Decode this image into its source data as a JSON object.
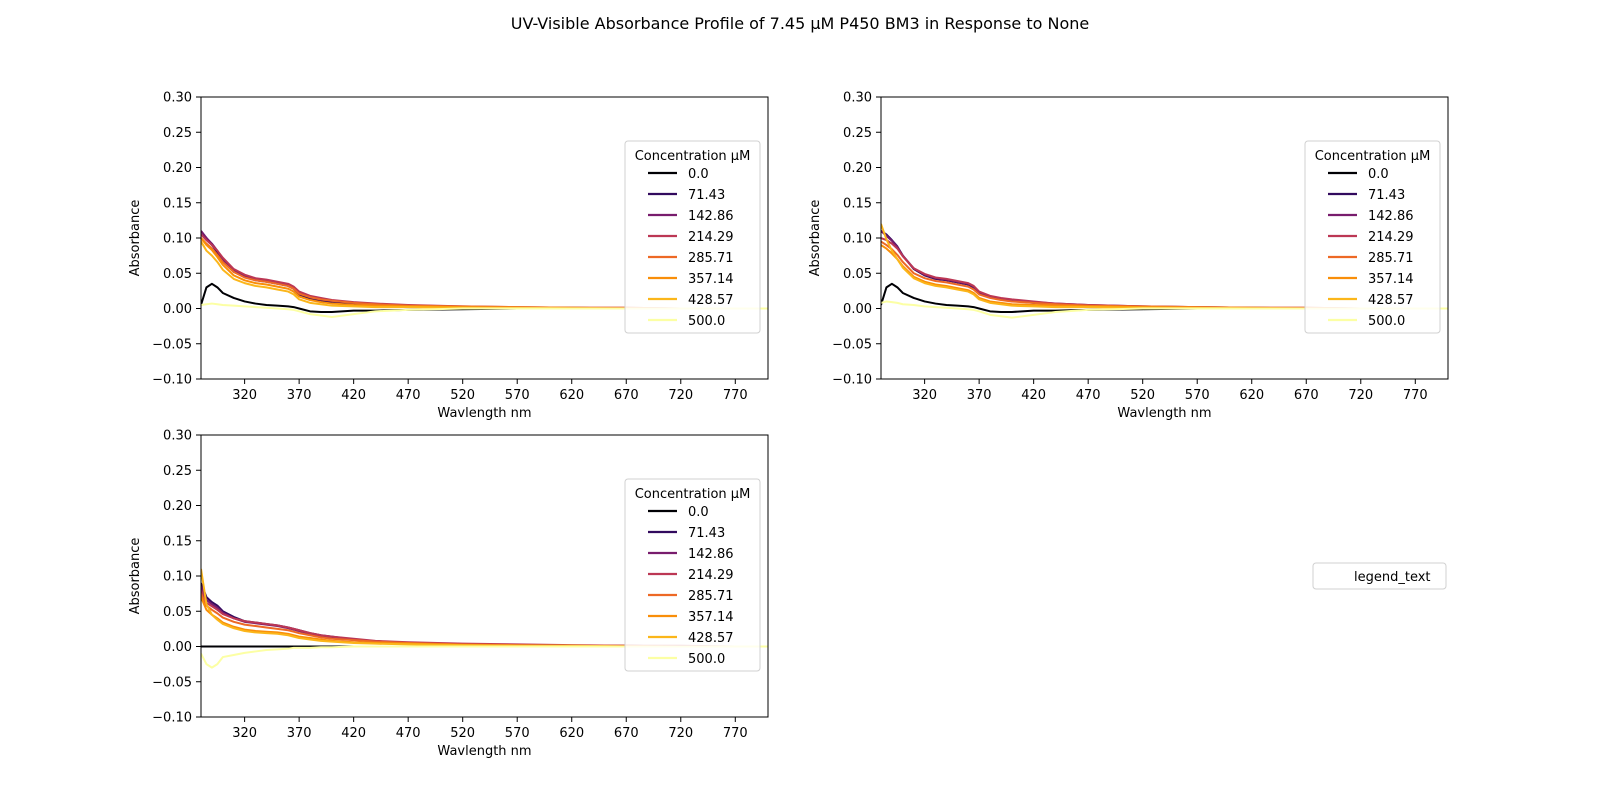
{
  "figure": {
    "title": "UV-Visible Absorbance Profile of 7.45 µM P450 BM3 in Response to None",
    "extra_legend_label": "legend_text"
  },
  "chart_data": [
    {
      "type": "line",
      "xlabel": "Wavlength nm",
      "ylabel": "Absorbance",
      "xlim": [
        280,
        800
      ],
      "ylim": [
        -0.1,
        0.3
      ],
      "xticks": [
        320,
        370,
        420,
        470,
        520,
        570,
        620,
        670,
        720,
        770
      ],
      "yticks": [
        -0.1,
        -0.05,
        0.0,
        0.05,
        0.1,
        0.15,
        0.2,
        0.25,
        0.3
      ],
      "grid": false,
      "legend": {
        "title": "Concentration µM",
        "placement": "center-right"
      },
      "x": [
        280,
        285,
        290,
        295,
        300,
        310,
        320,
        330,
        340,
        350,
        360,
        365,
        370,
        380,
        390,
        400,
        420,
        440,
        470,
        520,
        570,
        620,
        670,
        720,
        770,
        800
      ],
      "series": [
        {
          "name": "0.0",
          "color": "#000004",
          "values": [
            0.005,
            0.03,
            0.035,
            0.03,
            0.022,
            0.015,
            0.01,
            0.007,
            0.005,
            0.004,
            0.003,
            0.002,
            0.0,
            -0.004,
            -0.005,
            -0.005,
            -0.003,
            -0.003,
            -0.002,
            -0.001,
            0.0,
            0.0,
            0.0,
            0.0,
            0.0,
            0.0
          ]
        },
        {
          "name": "71.43",
          "color": "#320a5e",
          "values": [
            0.11,
            0.1,
            0.09,
            0.08,
            0.068,
            0.052,
            0.045,
            0.04,
            0.038,
            0.035,
            0.032,
            0.028,
            0.02,
            0.014,
            0.011,
            0.009,
            0.007,
            0.005,
            0.004,
            0.002,
            0.001,
            0.001,
            0.0,
            0.0,
            0.0,
            0.0
          ]
        },
        {
          "name": "142.86",
          "color": "#781c6d",
          "values": [
            0.11,
            0.1,
            0.092,
            0.082,
            0.07,
            0.055,
            0.047,
            0.042,
            0.04,
            0.037,
            0.034,
            0.03,
            0.022,
            0.016,
            0.013,
            0.011,
            0.008,
            0.006,
            0.004,
            0.002,
            0.001,
            0.001,
            0.0,
            0.0,
            0.0,
            0.0
          ]
        },
        {
          "name": "214.29",
          "color": "#bc3754",
          "values": [
            0.105,
            0.097,
            0.09,
            0.082,
            0.072,
            0.056,
            0.048,
            0.043,
            0.041,
            0.038,
            0.035,
            0.031,
            0.024,
            0.018,
            0.015,
            0.012,
            0.009,
            0.007,
            0.005,
            0.003,
            0.002,
            0.001,
            0.001,
            0.0,
            0.0,
            0.0
          ]
        },
        {
          "name": "285.71",
          "color": "#ed6925",
          "values": [
            0.1,
            0.092,
            0.085,
            0.076,
            0.066,
            0.052,
            0.044,
            0.04,
            0.038,
            0.035,
            0.032,
            0.028,
            0.021,
            0.016,
            0.013,
            0.011,
            0.008,
            0.006,
            0.004,
            0.003,
            0.002,
            0.001,
            0.001,
            0.0,
            0.0,
            0.0
          ]
        },
        {
          "name": "357.14",
          "color": "#f98e09",
          "values": [
            0.1,
            0.09,
            0.083,
            0.073,
            0.062,
            0.047,
            0.04,
            0.036,
            0.034,
            0.031,
            0.028,
            0.024,
            0.017,
            0.012,
            0.009,
            0.007,
            0.005,
            0.004,
            0.003,
            0.002,
            0.001,
            0.001,
            0.0,
            0.0,
            0.0,
            0.0
          ]
        },
        {
          "name": "428.57",
          "color": "#fbb61a",
          "values": [
            0.095,
            0.082,
            0.075,
            0.066,
            0.055,
            0.042,
            0.036,
            0.032,
            0.03,
            0.027,
            0.024,
            0.02,
            0.013,
            0.008,
            0.006,
            0.004,
            0.003,
            0.002,
            0.002,
            0.001,
            0.001,
            0.0,
            0.0,
            0.0,
            0.0,
            0.0
          ]
        },
        {
          "name": "500.0",
          "color": "#fcffa4",
          "values": [
            0.005,
            0.006,
            0.007,
            0.006,
            0.005,
            0.004,
            0.003,
            0.002,
            0.001,
            0.0,
            -0.001,
            -0.002,
            -0.004,
            -0.008,
            -0.01,
            -0.012,
            -0.008,
            -0.004,
            -0.002,
            0.0,
            0.0,
            0.0,
            0.0,
            0.0,
            0.0,
            0.0
          ]
        }
      ]
    },
    {
      "type": "line",
      "xlabel": "Wavlength nm",
      "ylabel": "Absorbance",
      "xlim": [
        280,
        800
      ],
      "ylim": [
        -0.1,
        0.3
      ],
      "xticks": [
        320,
        370,
        420,
        470,
        520,
        570,
        620,
        670,
        720,
        770
      ],
      "yticks": [
        -0.1,
        -0.05,
        0.0,
        0.05,
        0.1,
        0.15,
        0.2,
        0.25,
        0.3
      ],
      "grid": false,
      "legend": {
        "title": "Concentration µM",
        "placement": "center-right"
      },
      "x": [
        280,
        285,
        290,
        295,
        300,
        310,
        320,
        330,
        340,
        350,
        360,
        365,
        370,
        380,
        390,
        400,
        420,
        440,
        470,
        520,
        570,
        620,
        670,
        720,
        770,
        800
      ],
      "series": [
        {
          "name": "0.0",
          "color": "#000004",
          "values": [
            0.005,
            0.03,
            0.035,
            0.03,
            0.022,
            0.015,
            0.01,
            0.007,
            0.005,
            0.004,
            0.003,
            0.002,
            0.0,
            -0.004,
            -0.005,
            -0.005,
            -0.003,
            -0.003,
            -0.002,
            -0.001,
            0.0,
            0.0,
            0.0,
            0.0,
            0.0,
            0.0
          ]
        },
        {
          "name": "71.43",
          "color": "#320a5e",
          "values": [
            0.11,
            0.105,
            0.097,
            0.088,
            0.075,
            0.056,
            0.047,
            0.042,
            0.04,
            0.037,
            0.034,
            0.03,
            0.022,
            0.016,
            0.013,
            0.011,
            0.008,
            0.006,
            0.004,
            0.002,
            0.001,
            0.001,
            0.0,
            0.0,
            0.0,
            0.0
          ]
        },
        {
          "name": "142.86",
          "color": "#781c6d",
          "values": [
            0.11,
            0.103,
            0.096,
            0.087,
            0.075,
            0.057,
            0.048,
            0.043,
            0.041,
            0.038,
            0.035,
            0.031,
            0.023,
            0.017,
            0.014,
            0.012,
            0.009,
            0.007,
            0.005,
            0.003,
            0.002,
            0.001,
            0.0,
            0.0,
            0.0,
            0.0
          ]
        },
        {
          "name": "214.29",
          "color": "#bc3754",
          "values": [
            0.1,
            0.097,
            0.092,
            0.085,
            0.074,
            0.057,
            0.049,
            0.044,
            0.042,
            0.039,
            0.036,
            0.032,
            0.024,
            0.018,
            0.015,
            0.013,
            0.01,
            0.007,
            0.005,
            0.003,
            0.002,
            0.001,
            0.001,
            0.0,
            0.0,
            0.0
          ]
        },
        {
          "name": "285.71",
          "color": "#ed6925",
          "values": [
            0.095,
            0.09,
            0.084,
            0.076,
            0.066,
            0.05,
            0.043,
            0.039,
            0.037,
            0.034,
            0.031,
            0.027,
            0.02,
            0.015,
            0.012,
            0.01,
            0.008,
            0.006,
            0.004,
            0.003,
            0.002,
            0.001,
            0.001,
            0.0,
            0.0,
            0.0
          ]
        },
        {
          "name": "357.14",
          "color": "#f98e09",
          "values": [
            0.09,
            0.085,
            0.078,
            0.07,
            0.06,
            0.045,
            0.038,
            0.034,
            0.032,
            0.029,
            0.026,
            0.022,
            0.015,
            0.01,
            0.008,
            0.006,
            0.005,
            0.004,
            0.003,
            0.002,
            0.001,
            0.001,
            0.0,
            0.0,
            0.0,
            0.0
          ]
        },
        {
          "name": "428.57",
          "color": "#fbb61a",
          "values": [
            0.12,
            0.098,
            0.082,
            0.07,
            0.058,
            0.043,
            0.036,
            0.032,
            0.03,
            0.027,
            0.024,
            0.02,
            0.013,
            0.008,
            0.006,
            0.004,
            0.003,
            0.002,
            0.002,
            0.001,
            0.001,
            0.0,
            0.0,
            0.0,
            0.0,
            0.0
          ]
        },
        {
          "name": "500.0",
          "color": "#fcffa4",
          "values": [
            0.008,
            0.01,
            0.009,
            0.008,
            0.006,
            0.005,
            0.003,
            0.002,
            0.001,
            0.0,
            -0.001,
            -0.002,
            -0.004,
            -0.009,
            -0.011,
            -0.013,
            -0.009,
            -0.005,
            -0.002,
            0.0,
            0.0,
            0.0,
            0.0,
            0.0,
            0.0,
            0.0
          ]
        }
      ]
    },
    {
      "type": "line",
      "xlabel": "Wavlength nm",
      "ylabel": "Absorbance",
      "xlim": [
        280,
        800
      ],
      "ylim": [
        -0.1,
        0.3
      ],
      "xticks": [
        320,
        370,
        420,
        470,
        520,
        570,
        620,
        670,
        720,
        770
      ],
      "yticks": [
        -0.1,
        -0.05,
        0.0,
        0.05,
        0.1,
        0.15,
        0.2,
        0.25,
        0.3
      ],
      "grid": false,
      "legend": {
        "title": "Concentration µM",
        "placement": "center-right"
      },
      "x": [
        280,
        285,
        290,
        295,
        300,
        310,
        320,
        330,
        340,
        350,
        360,
        365,
        370,
        380,
        390,
        400,
        420,
        440,
        470,
        520,
        570,
        620,
        670,
        720,
        770,
        800
      ],
      "series": [
        {
          "name": "0.0",
          "color": "#000004",
          "values": [
            0.0,
            0.0,
            0.0,
            0.0,
            0.0,
            0.0,
            0.0,
            0.0,
            0.0,
            0.0,
            0.0,
            0.0,
            0.0,
            0.0,
            0.0,
            0.0,
            0.0,
            0.0,
            0.0,
            0.0,
            0.0,
            0.0,
            0.0,
            0.0,
            0.0,
            0.0
          ]
        },
        {
          "name": "71.43",
          "color": "#320a5e",
          "values": [
            0.09,
            0.07,
            0.063,
            0.058,
            0.05,
            0.042,
            0.036,
            0.034,
            0.032,
            0.03,
            0.027,
            0.025,
            0.023,
            0.019,
            0.016,
            0.014,
            0.01,
            0.007,
            0.005,
            0.003,
            0.002,
            0.001,
            0.001,
            0.0,
            0.0,
            0.0
          ]
        },
        {
          "name": "142.86",
          "color": "#781c6d",
          "values": [
            0.085,
            0.066,
            0.06,
            0.055,
            0.048,
            0.04,
            0.035,
            0.033,
            0.031,
            0.029,
            0.026,
            0.024,
            0.022,
            0.018,
            0.015,
            0.013,
            0.01,
            0.007,
            0.005,
            0.003,
            0.002,
            0.001,
            0.001,
            0.0,
            0.0,
            0.0
          ]
        },
        {
          "name": "214.29",
          "color": "#bc3754",
          "values": [
            0.08,
            0.062,
            0.057,
            0.052,
            0.046,
            0.04,
            0.036,
            0.034,
            0.032,
            0.03,
            0.027,
            0.025,
            0.023,
            0.019,
            0.016,
            0.014,
            0.011,
            0.008,
            0.006,
            0.004,
            0.003,
            0.002,
            0.001,
            0.001,
            0.0,
            0.0
          ]
        },
        {
          "name": "285.71",
          "color": "#ed6925",
          "values": [
            0.075,
            0.058,
            0.052,
            0.047,
            0.041,
            0.035,
            0.031,
            0.029,
            0.027,
            0.025,
            0.023,
            0.021,
            0.019,
            0.016,
            0.013,
            0.011,
            0.009,
            0.007,
            0.005,
            0.003,
            0.002,
            0.001,
            0.001,
            0.0,
            0.0,
            0.0
          ]
        },
        {
          "name": "357.14",
          "color": "#f98e09",
          "values": [
            0.07,
            0.052,
            0.045,
            0.04,
            0.034,
            0.028,
            0.024,
            0.022,
            0.021,
            0.02,
            0.018,
            0.016,
            0.014,
            0.012,
            0.01,
            0.008,
            0.006,
            0.005,
            0.004,
            0.002,
            0.001,
            0.001,
            0.0,
            0.0,
            0.0,
            0.0
          ]
        },
        {
          "name": "428.57",
          "color": "#fbb61a",
          "values": [
            0.11,
            0.06,
            0.045,
            0.038,
            0.032,
            0.026,
            0.022,
            0.02,
            0.019,
            0.018,
            0.016,
            0.014,
            0.012,
            0.01,
            0.008,
            0.007,
            0.005,
            0.004,
            0.003,
            0.002,
            0.001,
            0.001,
            0.0,
            0.0,
            0.0,
            0.0
          ]
        },
        {
          "name": "500.0",
          "color": "#fcffa4",
          "values": [
            -0.01,
            -0.025,
            -0.03,
            -0.025,
            -0.015,
            -0.012,
            -0.009,
            -0.007,
            -0.005,
            -0.004,
            -0.003,
            -0.002,
            -0.002,
            -0.002,
            -0.001,
            -0.001,
            0.0,
            0.0,
            0.0,
            0.0,
            0.0,
            0.0,
            0.0,
            0.0,
            0.0,
            0.0
          ]
        }
      ]
    }
  ]
}
